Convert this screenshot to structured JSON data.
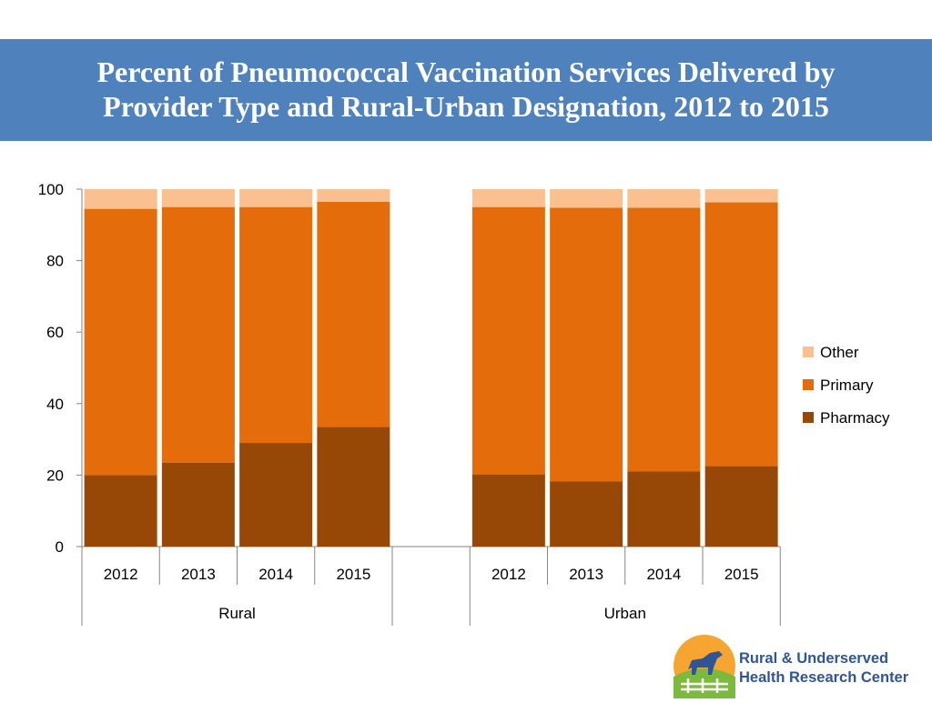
{
  "slide": {
    "title_line1": "Percent of Pneumococcal Vaccination Services Delivered by",
    "title_line2": "Provider Type and Rural-Urban Designation, 2012 to 2015"
  },
  "colors": {
    "banner": "#4f81bd",
    "pharmacy": "#974706",
    "primary": "#e46c0a",
    "other": "#fac090",
    "logo_text": "#2f5597"
  },
  "logo": {
    "line1": "Rural & Underserved",
    "line2": "Health Research Center",
    "icon": "horse-on-hill-logo-icon"
  },
  "chart_data": {
    "type": "bar",
    "stacked": true,
    "title": "Percent of Pneumococcal Vaccination Services Delivered by Provider Type and Rural-Urban Designation, 2012 to 2015",
    "ylim": [
      0,
      100
    ],
    "yticks": [
      0,
      20,
      40,
      60,
      80,
      100
    ],
    "grid": false,
    "legend_position": "right",
    "groups": [
      {
        "name": "Rural",
        "categories": [
          "2012",
          "2013",
          "2014",
          "2015"
        ]
      },
      {
        "name": "Urban",
        "categories": [
          "2012",
          "2013",
          "2014",
          "2015"
        ]
      }
    ],
    "series": [
      {
        "name": "Pharmacy",
        "color": "#974706",
        "values": [
          20,
          23.5,
          29,
          33.5,
          20.2,
          18.2,
          21,
          22.5
        ]
      },
      {
        "name": "Primary",
        "color": "#e46c0a",
        "values": [
          74.5,
          71.5,
          66,
          63,
          74.8,
          76.6,
          73.8,
          73.8
        ]
      },
      {
        "name": "Other",
        "color": "#fac090",
        "values": [
          5.5,
          5,
          5,
          3.5,
          5,
          5.2,
          5.2,
          3.7
        ]
      }
    ],
    "legend": [
      "Other",
      "Primary",
      "Pharmacy"
    ]
  }
}
